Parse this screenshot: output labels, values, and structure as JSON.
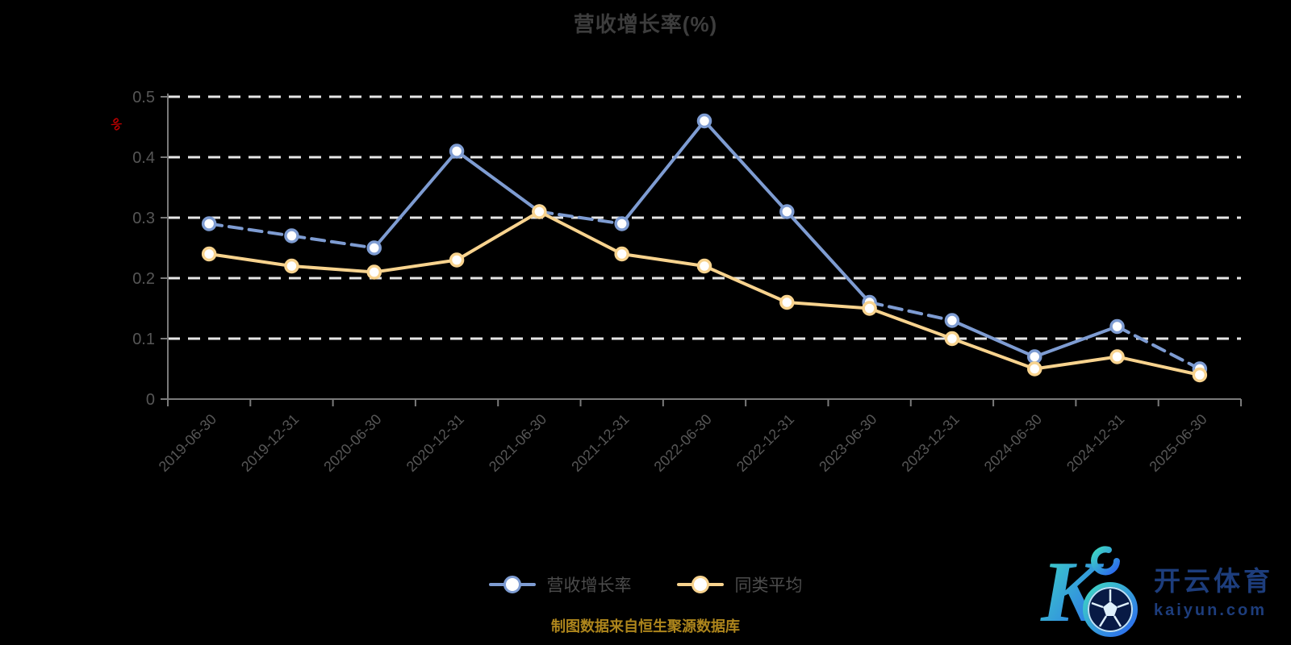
{
  "title": "营收增长率(%)",
  "chart_data": {
    "type": "line",
    "title": "营收增长率(%)",
    "xlabel": "",
    "ylabel": "%",
    "ylim": [
      0,
      0.5
    ],
    "yticks": [
      0,
      0.1,
      0.2,
      0.3,
      0.4,
      0.5
    ],
    "ytick_labels": [
      "0",
      "0.1",
      "0.2",
      "0.3",
      "0.4",
      "0.5"
    ],
    "grid": "horizontal-dashed-white",
    "legend_position": "bottom",
    "categories": [
      "2019-06-30",
      "2019-12-31",
      "2020-06-30",
      "2020-12-31",
      "2021-06-30",
      "2021-12-31",
      "2022-06-30",
      "2022-12-31",
      "2023-06-30",
      "2023-12-31",
      "2024-06-30",
      "2024-12-31",
      "2025-06-30"
    ],
    "series": [
      {
        "name": "营收增长率",
        "color": "#7e9cd2",
        "values": [
          0.29,
          0.27,
          0.25,
          0.41,
          0.31,
          0.29,
          0.46,
          0.31,
          0.16,
          0.13,
          0.07,
          0.12,
          0.05
        ],
        "dashed_segments": [
          0,
          1,
          4,
          8,
          11
        ]
      },
      {
        "name": "同类平均",
        "color": "#f8d38e",
        "values": [
          0.24,
          0.22,
          0.21,
          0.23,
          0.31,
          0.24,
          0.22,
          0.16,
          0.15,
          0.1,
          0.05,
          0.07,
          0.04
        ],
        "dashed_segments": []
      }
    ]
  },
  "axis": {
    "unit_label": "%",
    "unit_color": "#c00000",
    "tick_label_color": "#565656",
    "axis_line_color": "#7a7a7a",
    "grid_line_color": "#e6e6e6"
  },
  "legend": {
    "items": [
      {
        "label": "营收增长率",
        "color": "#7e9cd2"
      },
      {
        "label": "同类平均",
        "color": "#f8d38e"
      }
    ]
  },
  "footer": {
    "source_note": "制图数据来自恒生聚源数据库",
    "color": "#ad851c"
  },
  "watermark": {
    "brand": "开云体育",
    "domain": "kaiyun.com",
    "text_color": "#1d3d7c",
    "gradient_start": "#3fd9c2",
    "gradient_end": "#2b66f0"
  }
}
